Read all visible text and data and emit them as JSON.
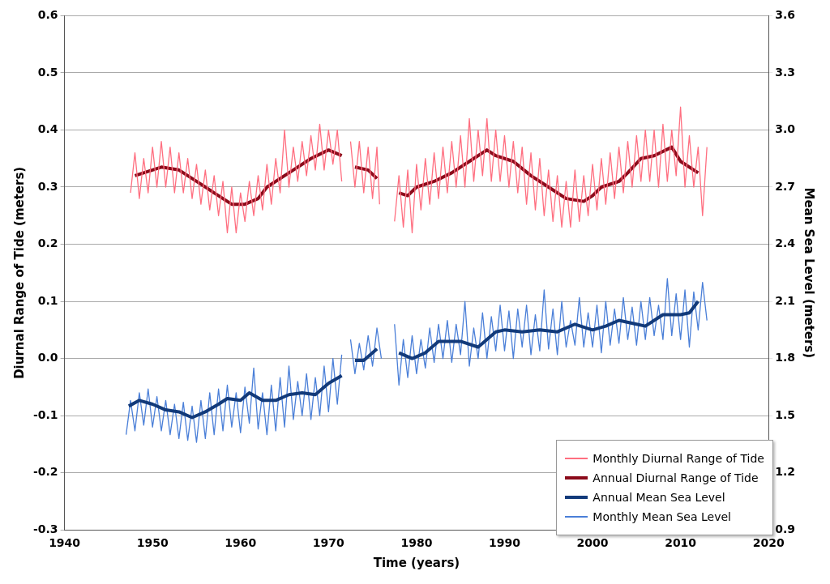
{
  "chart_data": {
    "type": "line",
    "xlabel": "Time (years)",
    "ylabel": "Diurnal Range of Tide (meters)",
    "y2label": "Mean Sea Level (meters)",
    "xlim": [
      1940,
      2020
    ],
    "xticks": [
      1940,
      1950,
      1960,
      1970,
      1980,
      1990,
      2000,
      2010,
      2020
    ],
    "ylim": [
      -0.3,
      0.6
    ],
    "yticks": [
      -0.3,
      -0.2,
      -0.1,
      {
        "value": 0,
        "label": "0.0"
      },
      0.1,
      0.2,
      0.3,
      0.4,
      0.5,
      0.6
    ],
    "y2lim": [
      0.9,
      3.6
    ],
    "y2ticks": [
      0.9,
      1.2,
      1.5,
      1.8,
      2.1,
      2.4,
      2.7,
      {
        "value": 3,
        "label": "3.0"
      },
      3.3,
      3.6
    ],
    "grid": "y",
    "legend": "bottom right",
    "marker": "none",
    "line_style": "solid",
    "series": [
      {
        "name": "Monthly Diurnal Range of Tide",
        "color": "#ff6f80",
        "x": [
          1947.5,
          1948,
          1948.5,
          1949,
          1949.5,
          1950,
          1950.5,
          1951,
          1951.5,
          1952,
          1952.5,
          1953,
          1953.5,
          1954,
          1954.5,
          1955,
          1955.5,
          1956,
          1956.5,
          1957,
          1957.5,
          1958,
          1958.5,
          1959,
          1959.5,
          1960,
          1960.5,
          1961,
          1961.5,
          1962,
          1962.5,
          1963,
          1963.5,
          1964,
          1964.5,
          1965,
          1965.5,
          1966,
          1966.5,
          1967,
          1967.5,
          1968,
          1968.5,
          1969,
          1969.5,
          1970,
          1970.5,
          1971,
          1971.5,
          1972,
          1972.5,
          1973,
          1973.5,
          1974,
          1974.5,
          1975,
          1975.5,
          1975.8,
          1976.5,
          1977.5,
          1978,
          1978.5,
          1979,
          1979.5,
          1980,
          1980.5,
          1981,
          1981.5,
          1982,
          1982.5,
          1983,
          1983.5,
          1984,
          1984.5,
          1985,
          1985.5,
          1986,
          1986.5,
          1987,
          1987.5,
          1988,
          1988.5,
          1989,
          1989.5,
          1990,
          1990.5,
          1991,
          1991.5,
          1992,
          1992.5,
          1993,
          1993.5,
          1994,
          1994.5,
          1995,
          1995.5,
          1996,
          1996.5,
          1997,
          1997.5,
          1998,
          1998.5,
          1999,
          1999.5,
          2000,
          2000.5,
          2001,
          2001.5,
          2002,
          2002.5,
          2003,
          2003.5,
          2004,
          2004.5,
          2005,
          2005.5,
          2006,
          2006.5,
          2007,
          2007.5,
          2008,
          2008.5,
          2009,
          2009.5,
          2010,
          2010.5,
          2011,
          2011.5,
          2012,
          2012.5,
          2013
        ],
        "values": [
          0.29,
          0.36,
          0.28,
          0.35,
          0.29,
          0.37,
          0.3,
          0.38,
          0.3,
          0.37,
          0.29,
          0.36,
          0.29,
          0.35,
          0.28,
          0.34,
          0.27,
          0.33,
          0.26,
          0.32,
          0.25,
          0.31,
          0.22,
          0.3,
          0.22,
          0.29,
          0.24,
          0.31,
          0.25,
          0.32,
          0.26,
          0.34,
          0.27,
          0.35,
          0.29,
          0.4,
          0.3,
          0.37,
          0.31,
          0.38,
          0.32,
          0.39,
          0.33,
          0.41,
          0.33,
          0.4,
          0.34,
          0.4,
          0.31,
          null,
          0.38,
          0.3,
          0.38,
          0.29,
          0.37,
          0.28,
          0.37,
          0.27,
          null,
          0.24,
          0.32,
          0.23,
          0.33,
          0.22,
          0.34,
          0.26,
          0.35,
          0.27,
          0.36,
          0.28,
          0.37,
          0.29,
          0.38,
          0.3,
          0.39,
          0.3,
          0.42,
          0.31,
          0.4,
          0.32,
          0.42,
          0.31,
          0.4,
          0.31,
          0.39,
          0.3,
          0.38,
          0.29,
          0.37,
          0.27,
          0.36,
          0.26,
          0.35,
          0.25,
          0.33,
          0.24,
          0.32,
          0.23,
          0.31,
          0.23,
          0.33,
          0.24,
          0.32,
          0.25,
          0.34,
          0.26,
          0.35,
          0.27,
          0.36,
          0.28,
          0.37,
          0.29,
          0.38,
          0.3,
          0.39,
          0.31,
          0.4,
          0.31,
          0.4,
          0.3,
          0.41,
          0.31,
          0.4,
          0.32,
          0.44,
          0.3,
          0.39,
          0.3,
          0.37,
          0.25,
          0.37
        ]
      },
      {
        "name": "Annual Diurnal Range of Tide",
        "color": "#8b0a1a",
        "x": [
          1948,
          1950,
          1951,
          1953,
          1955,
          1957,
          1959,
          1960.5,
          1962,
          1963,
          1965,
          1966,
          1968,
          1970,
          1971.5,
          1972.3,
          1973,
          1974.5,
          1975.5,
          1976.7,
          1978,
          1979,
          1980,
          1982,
          1984,
          1986,
          1988,
          1989,
          1991,
          1993,
          1995,
          1997,
          1999,
          2000,
          2001,
          2003,
          2004,
          2005.5,
          2007,
          2009,
          2010,
          2012
        ],
        "values": [
          0.32,
          0.33,
          0.335,
          0.33,
          0.31,
          0.29,
          0.27,
          0.27,
          0.28,
          0.3,
          0.32,
          0.33,
          0.35,
          0.365,
          0.355,
          null,
          0.335,
          0.33,
          0.315,
          null,
          0.29,
          0.285,
          0.3,
          0.31,
          0.325,
          0.345,
          0.365,
          0.355,
          0.345,
          0.32,
          0.3,
          0.28,
          0.275,
          0.285,
          0.3,
          0.31,
          0.325,
          0.35,
          0.355,
          0.37,
          0.345,
          0.325
        ]
      },
      {
        "name": "Annual Mean Sea Level",
        "color": "#123a7a",
        "axis": "y2",
        "x": [
          1947.3,
          1948.5,
          1950,
          1951.5,
          1953,
          1954.5,
          1956,
          1957.5,
          1958.5,
          1960,
          1961,
          1962.5,
          1964,
          1965.5,
          1967,
          1968.5,
          1970,
          1971.5,
          1972.3,
          1973,
          1974,
          1975.5,
          1976.7,
          1978,
          1979.5,
          1981,
          1982.5,
          1985,
          1987,
          1989,
          1990,
          1992,
          1994,
          1996,
          1998,
          2000,
          2001.5,
          2003,
          2005,
          2006,
          2008,
          2010,
          2011,
          2012
        ],
        "values": [
          1.55,
          1.58,
          1.56,
          1.53,
          1.52,
          1.49,
          1.52,
          1.56,
          1.59,
          1.58,
          1.62,
          1.58,
          1.58,
          1.61,
          1.62,
          1.61,
          1.67,
          1.71,
          null,
          1.79,
          1.79,
          1.85,
          null,
          1.83,
          1.8,
          1.83,
          1.89,
          1.89,
          1.86,
          1.94,
          1.95,
          1.94,
          1.95,
          1.94,
          1.98,
          1.95,
          1.97,
          2.0,
          1.98,
          1.97,
          2.03,
          2.03,
          2.04,
          2.1
        ]
      },
      {
        "name": "Monthly Mean Sea Level",
        "color": "#4a7fd8",
        "axis": "y2",
        "x": [
          1947,
          1947.5,
          1948,
          1948.5,
          1949,
          1949.5,
          1950,
          1950.5,
          1951,
          1951.5,
          1952,
          1952.5,
          1953,
          1953.5,
          1954,
          1954.5,
          1955,
          1955.5,
          1956,
          1956.5,
          1957,
          1957.5,
          1958,
          1958.5,
          1959,
          1959.5,
          1960,
          1960.5,
          1961,
          1961.5,
          1962,
          1962.5,
          1963,
          1963.5,
          1964,
          1964.5,
          1965,
          1965.5,
          1966,
          1966.5,
          1967,
          1967.5,
          1968,
          1968.5,
          1969,
          1969.5,
          1970,
          1970.5,
          1971,
          1971.5,
          1972,
          1972.5,
          1973,
          1973.5,
          1974,
          1974.5,
          1975,
          1975.5,
          1976,
          1976.8,
          1977.5,
          1978,
          1978.5,
          1979,
          1979.5,
          1980,
          1980.5,
          1981,
          1981.5,
          1982,
          1982.5,
          1983,
          1983.5,
          1984,
          1984.5,
          1985,
          1985.5,
          1986,
          1986.5,
          1987,
          1987.5,
          1988,
          1988.5,
          1989,
          1989.5,
          1990,
          1990.5,
          1991,
          1991.5,
          1992,
          1992.5,
          1993,
          1993.5,
          1994,
          1994.5,
          1995,
          1995.5,
          1996,
          1996.5,
          1997,
          1997.5,
          1998,
          1998.5,
          1999,
          1999.5,
          2000,
          2000.5,
          2001,
          2001.5,
          2002,
          2002.5,
          2003,
          2003.5,
          2004,
          2004.5,
          2005,
          2005.5,
          2006,
          2006.5,
          2007,
          2007.5,
          2008,
          2008.5,
          2009,
          2009.5,
          2010,
          2010.5,
          2011,
          2011.5,
          2012,
          2012.5,
          2013
        ],
        "values": [
          1.4,
          1.58,
          1.42,
          1.62,
          1.45,
          1.64,
          1.44,
          1.6,
          1.42,
          1.58,
          1.4,
          1.56,
          1.38,
          1.57,
          1.37,
          1.55,
          1.36,
          1.58,
          1.38,
          1.62,
          1.4,
          1.64,
          1.42,
          1.66,
          1.44,
          1.62,
          1.41,
          1.65,
          1.46,
          1.75,
          1.43,
          1.62,
          1.4,
          1.66,
          1.42,
          1.7,
          1.44,
          1.76,
          1.48,
          1.68,
          1.5,
          1.72,
          1.48,
          1.7,
          1.5,
          1.76,
          1.52,
          1.8,
          1.56,
          1.82,
          null,
          1.9,
          1.72,
          1.88,
          1.74,
          1.92,
          1.76,
          1.96,
          1.8,
          null,
          1.98,
          1.66,
          1.9,
          1.7,
          1.92,
          1.72,
          1.9,
          1.75,
          1.96,
          1.78,
          1.98,
          1.8,
          2.0,
          1.78,
          1.98,
          1.82,
          2.1,
          1.76,
          1.96,
          1.8,
          2.04,
          1.8,
          2.02,
          1.84,
          2.08,
          1.84,
          2.05,
          1.8,
          2.06,
          1.86,
          2.08,
          1.82,
          2.03,
          1.84,
          2.16,
          1.85,
          2.06,
          1.82,
          2.1,
          1.86,
          2.0,
          1.87,
          2.12,
          1.86,
          2.04,
          1.86,
          2.08,
          1.83,
          2.1,
          1.87,
          2.06,
          1.88,
          2.12,
          1.9,
          2.07,
          1.87,
          2.1,
          1.9,
          2.12,
          1.92,
          2.08,
          1.9,
          2.22,
          1.92,
          2.14,
          1.9,
          2.16,
          1.86,
          2.15,
          1.95,
          2.2,
          2.0
        ]
      }
    ]
  }
}
